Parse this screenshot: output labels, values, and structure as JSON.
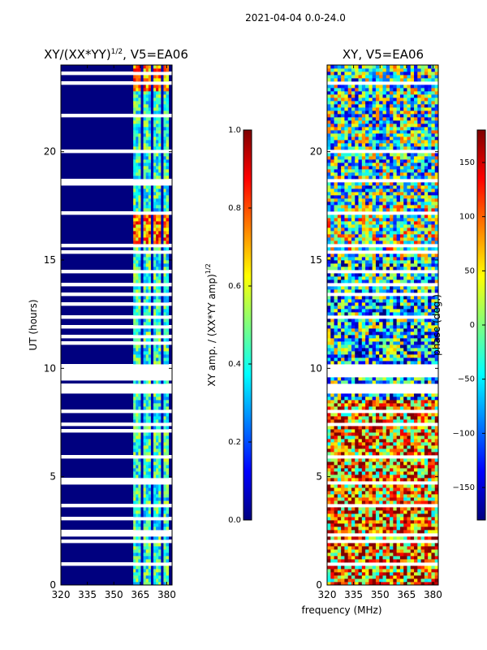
{
  "figure_title": "2021-04-04 0.0-24.0",
  "shared_xlabel": "frequency (MHz)",
  "colors": {
    "jet": [
      "#00007f",
      "#0000ff",
      "#007fff",
      "#00ffff",
      "#7fff7f",
      "#ffff00",
      "#ff7f00",
      "#ff0000",
      "#7f0000"
    ],
    "flagged": "#ffffff",
    "axis": "#000000"
  },
  "chart_data": [
    {
      "type": "heatmap",
      "title": "XY/(XX*YY)",
      "title_sup": "1/2",
      "title_suffix": ", V5=EA06",
      "xlabel": "",
      "ylabel": "UT (hours)",
      "xlim": [
        320,
        383
      ],
      "ylim": [
        0,
        24
      ],
      "xticks": [
        320,
        335,
        350,
        365,
        380
      ],
      "yticks": [
        0,
        5,
        10,
        15,
        20
      ],
      "colorbar": {
        "label": "XY amp. / (XX*YY amp)",
        "label_sup": "1/2",
        "range": [
          0.0,
          1.0
        ],
        "ticks": [
          0.0,
          0.2,
          0.4,
          0.6,
          0.8,
          1.0
        ],
        "tick_labels": [
          "0.0",
          "0.2",
          "0.4",
          "0.6",
          "0.8",
          "1.0"
        ]
      },
      "description_values": {
        "background_amplitude": 0.0,
        "active_band_MHz": [
          361,
          381
        ],
        "active_band_amplitude_range": [
          0.25,
          0.95
        ]
      }
    },
    {
      "type": "heatmap",
      "title": "XY, V5=EA06",
      "xlabel": "",
      "ylabel": "",
      "xlim": [
        320,
        383
      ],
      "ylim": [
        0,
        24
      ],
      "xticks": [
        320,
        335,
        350,
        365,
        380
      ],
      "yticks": [
        0,
        5,
        10,
        15,
        20
      ],
      "colorbar": {
        "label": "phase (deg.)",
        "range": [
          -180,
          180
        ],
        "ticks": [
          -150,
          -100,
          -50,
          0,
          50,
          100,
          150
        ],
        "tick_labels": [
          "−150",
          "−100",
          "−50",
          "0",
          "50",
          "100",
          "150"
        ]
      }
    }
  ]
}
